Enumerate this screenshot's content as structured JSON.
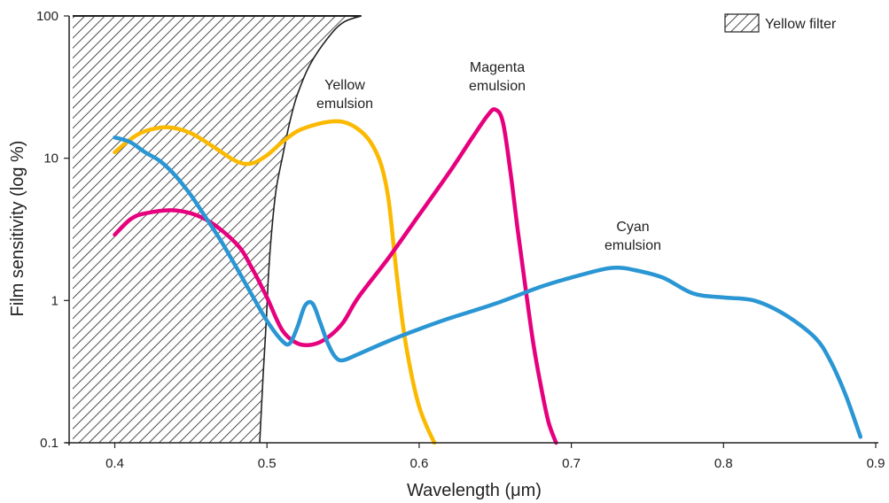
{
  "chart_data": {
    "type": "line",
    "xlabel": "Wavelength (μm)",
    "ylabel": "Film sensitivity (log %)",
    "xlim": [
      0.37,
      0.9
    ],
    "ylim": [
      0.1,
      100
    ],
    "yscale": "log",
    "x_ticks": [
      "0.4",
      "0.5",
      "0.6",
      "0.7",
      "0.8",
      "0.9"
    ],
    "x_tick_values": [
      0.4,
      0.5,
      0.6,
      0.7,
      0.8,
      0.9
    ],
    "y_ticks": [
      "0.1",
      "1",
      "10",
      "100"
    ],
    "y_tick_values": [
      0.1,
      1,
      10,
      100
    ],
    "grid": false,
    "legend": {
      "position": "top-right",
      "label": "Yellow filter"
    },
    "filter_region": {
      "name": "Yellow filter",
      "pattern": "hatched",
      "boundary": {
        "x": [
          0.4952,
          0.4975,
          0.4995,
          0.501,
          0.503,
          0.506,
          0.51,
          0.515,
          0.52,
          0.528,
          0.54,
          0.55,
          0.562
        ],
        "y": [
          0.1,
          0.3,
          0.7,
          1.5,
          3,
          6,
          10,
          18,
          28,
          45,
          70,
          90,
          100
        ]
      }
    },
    "series": [
      {
        "name": "Yellow emulsion",
        "color": "#fbb900",
        "x": [
          0.4,
          0.41,
          0.42,
          0.435,
          0.45,
          0.465,
          0.48,
          0.49,
          0.5,
          0.51,
          0.52,
          0.53,
          0.54,
          0.55,
          0.56,
          0.568,
          0.575,
          0.58,
          0.585,
          0.59,
          0.595,
          0.6,
          0.605,
          0.61
        ],
        "y": [
          11,
          13.5,
          15.5,
          16.5,
          15,
          12,
          9.5,
          9.2,
          10.5,
          13,
          15.5,
          17,
          18,
          18,
          16,
          13,
          9,
          5,
          1.6,
          0.6,
          0.3,
          0.18,
          0.13,
          0.1
        ]
      },
      {
        "name": "Magenta emulsion",
        "color": "#e6007e",
        "x": [
          0.4,
          0.41,
          0.42,
          0.44,
          0.46,
          0.48,
          0.49,
          0.5,
          0.51,
          0.52,
          0.53,
          0.54,
          0.55,
          0.56,
          0.58,
          0.6,
          0.62,
          0.635,
          0.645,
          0.65,
          0.655,
          0.66,
          0.665,
          0.67,
          0.675,
          0.68,
          0.685,
          0.69
        ],
        "y": [
          2.9,
          3.7,
          4.1,
          4.3,
          3.7,
          2.5,
          1.7,
          1.05,
          0.62,
          0.5,
          0.49,
          0.55,
          0.7,
          1.05,
          2,
          4,
          8,
          14,
          20,
          22,
          18,
          8,
          3,
          1.2,
          0.5,
          0.25,
          0.14,
          0.1
        ]
      },
      {
        "name": "Cyan emulsion",
        "color": "#2a96d3",
        "x": [
          0.4,
          0.41,
          0.42,
          0.43,
          0.44,
          0.45,
          0.46,
          0.47,
          0.48,
          0.49,
          0.5,
          0.51,
          0.515,
          0.52,
          0.525,
          0.53,
          0.535,
          0.54,
          0.545,
          0.55,
          0.56,
          0.58,
          0.6,
          0.62,
          0.65,
          0.68,
          0.7,
          0.72,
          0.73,
          0.74,
          0.76,
          0.78,
          0.8,
          0.82,
          0.84,
          0.86,
          0.87,
          0.88,
          0.89
        ],
        "y": [
          14,
          13,
          11,
          9.5,
          7.5,
          5.5,
          3.8,
          2.6,
          1.7,
          1.1,
          0.72,
          0.52,
          0.5,
          0.65,
          0.92,
          0.95,
          0.7,
          0.5,
          0.4,
          0.38,
          0.42,
          0.52,
          0.63,
          0.75,
          0.95,
          1.25,
          1.45,
          1.65,
          1.7,
          1.65,
          1.45,
          1.12,
          1.05,
          1.0,
          0.8,
          0.55,
          0.38,
          0.22,
          0.11
        ]
      }
    ],
    "annotations": [
      {
        "lines": [
          "Yellow",
          "emulsion"
        ]
      },
      {
        "lines": [
          "Magenta",
          "emulsion"
        ]
      },
      {
        "lines": [
          "Cyan",
          "emulsion"
        ]
      }
    ]
  }
}
